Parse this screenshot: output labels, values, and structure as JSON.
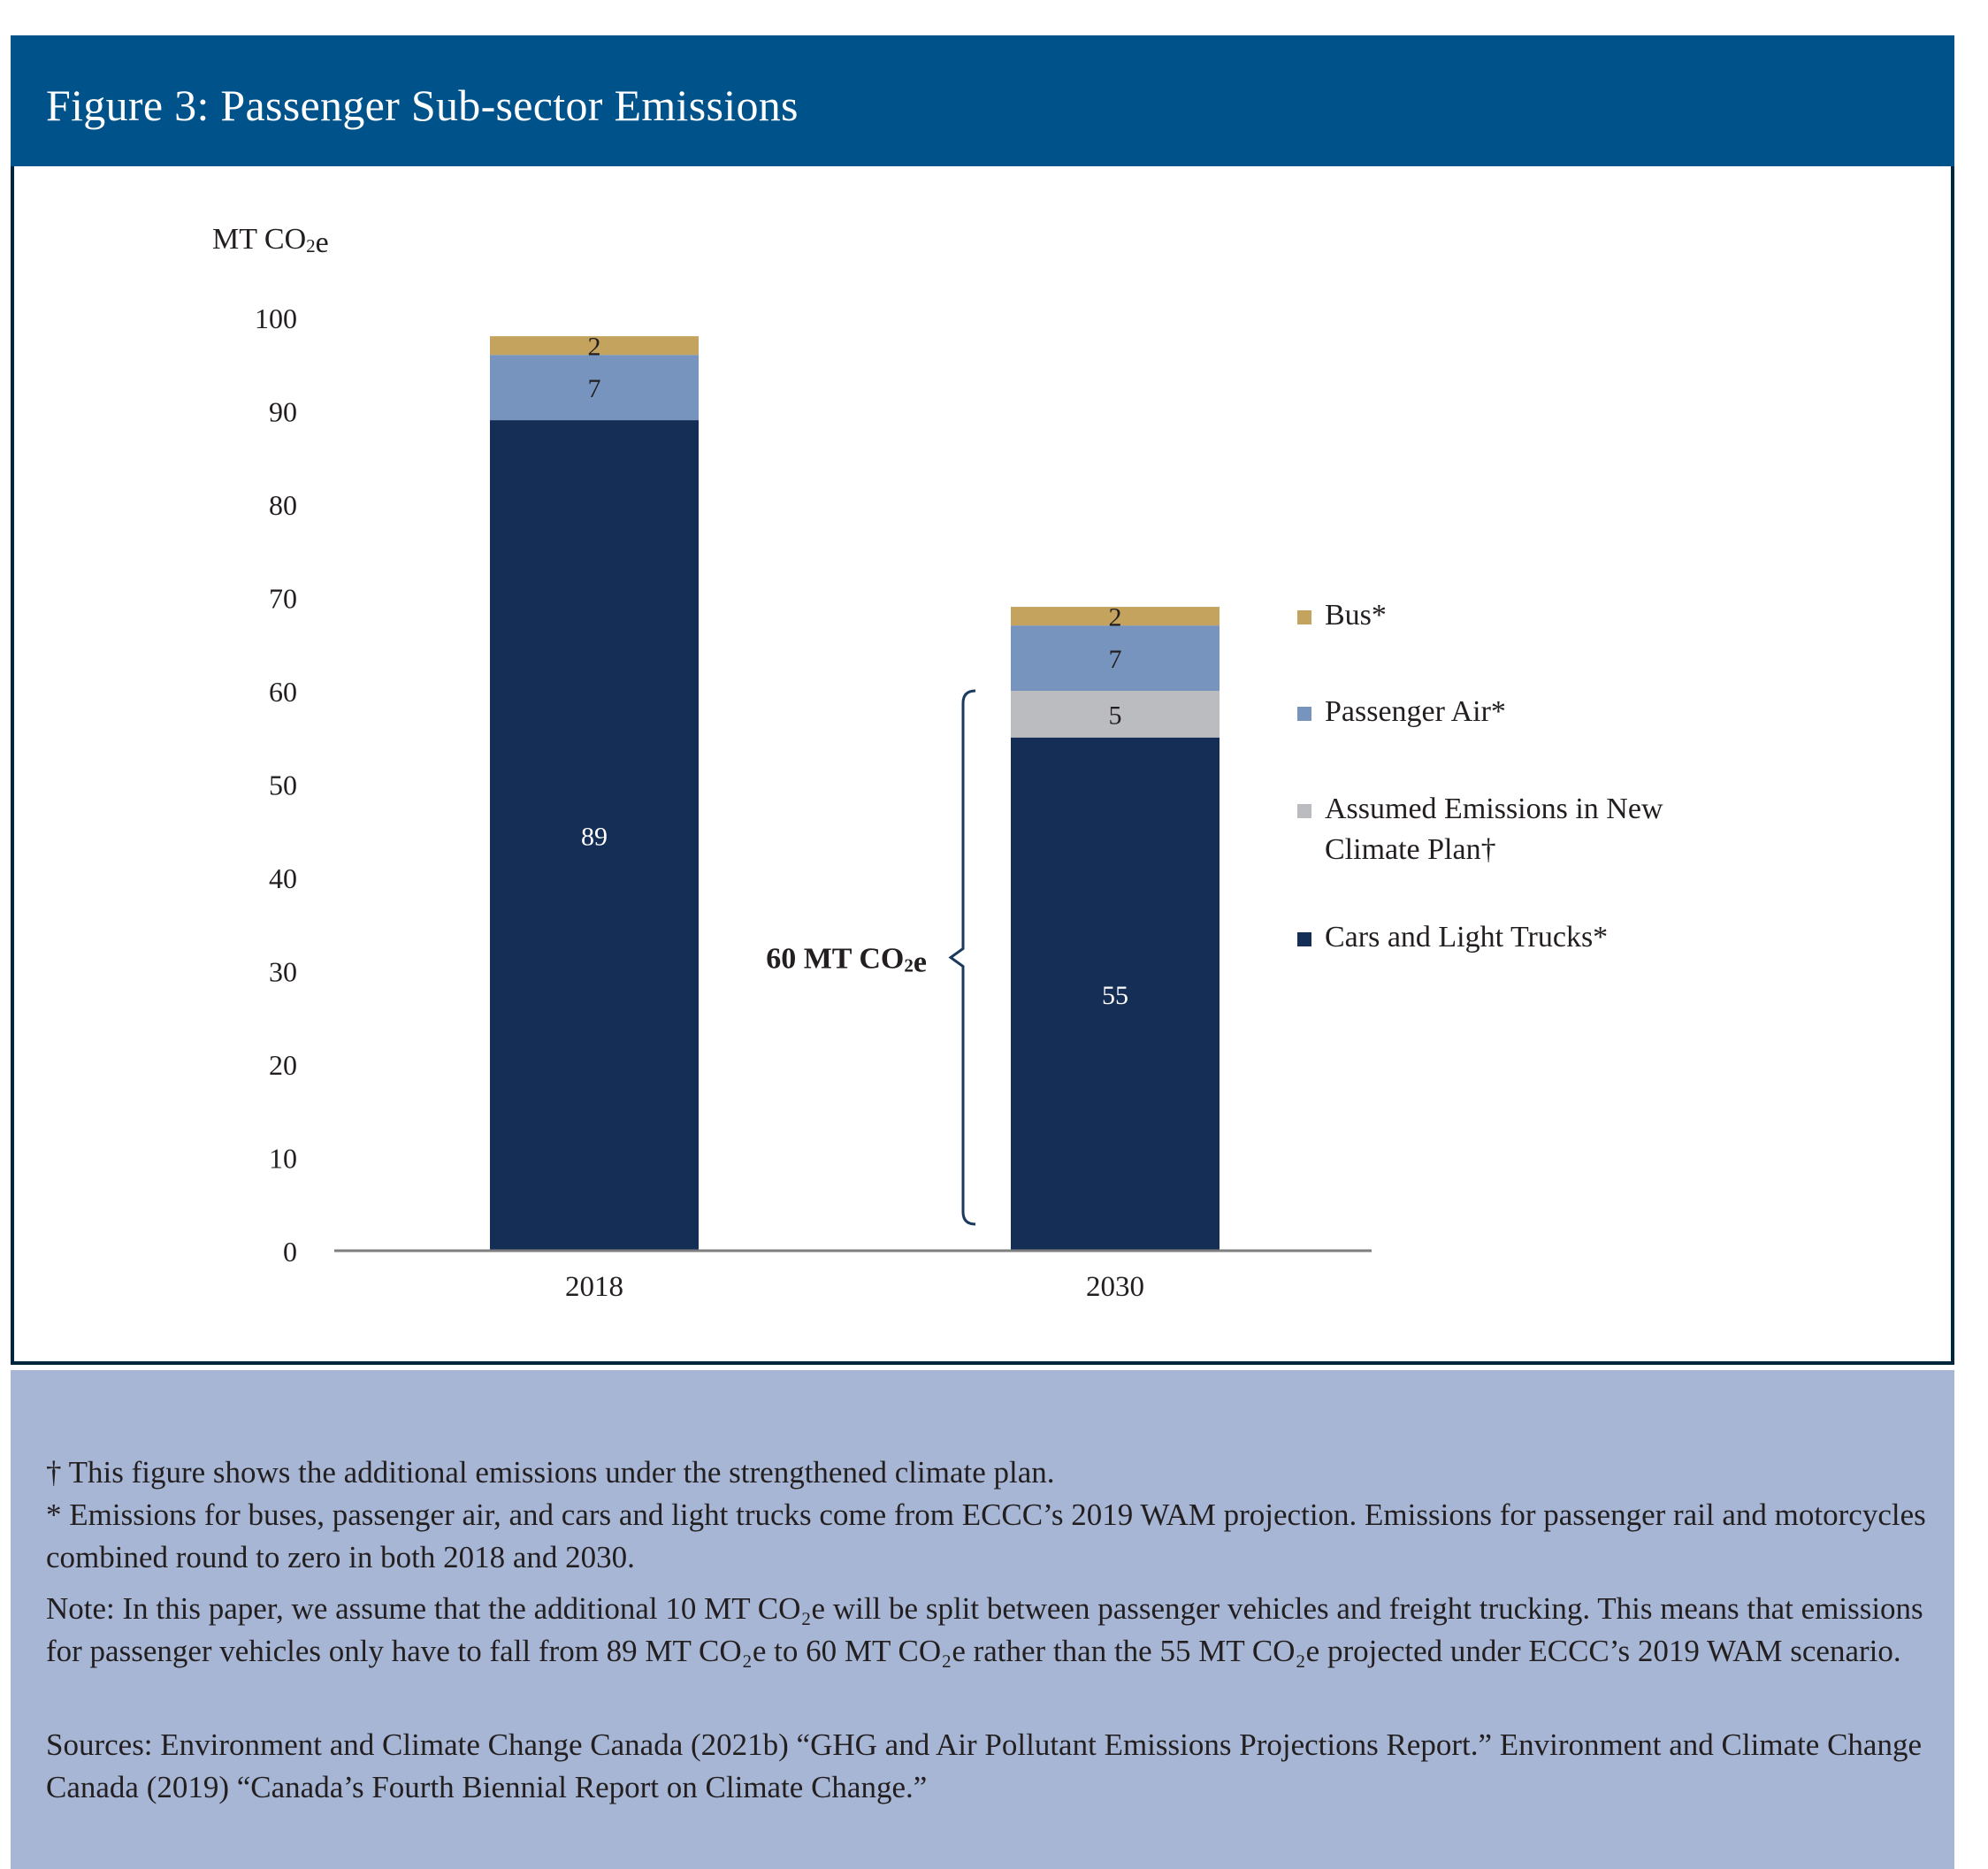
{
  "header": {
    "title": "Figure 3: Passenger Sub-sector Emissions"
  },
  "colors": {
    "header_bg": "#00528a",
    "notes_bg": "#a7b6d4",
    "bus": "#c4a35f",
    "passenger_air": "#7694bd",
    "assumed": "#bbbcc0",
    "cars": "#142e55",
    "bracket": "#1a3a5e"
  },
  "chart_data": {
    "type": "bar",
    "stacked": true,
    "categories": [
      "2018",
      "2030"
    ],
    "series": [
      {
        "name": "Cars and Light Trucks*",
        "values": [
          89,
          55
        ],
        "color": "#142e55",
        "label_color": "#ffffff"
      },
      {
        "name": "Assumed Emissions in New Climate Plan†",
        "values": [
          0,
          5
        ],
        "color": "#bbbcc0",
        "label_color": "#231f20"
      },
      {
        "name": "Passenger Air*",
        "values": [
          7,
          7
        ],
        "color": "#7694bd",
        "label_color": "#231f20"
      },
      {
        "name": "Bus*",
        "values": [
          2,
          2
        ],
        "color": "#c4a35f",
        "label_color": "#231f20"
      }
    ],
    "legend_order": [
      "Bus*",
      "Passenger Air*",
      "Assumed Emissions in New Climate Plan†",
      "Cars and Light Trucks*"
    ],
    "ylabel": "MT CO₂e",
    "yticks": [
      0,
      10,
      20,
      30,
      40,
      50,
      60,
      70,
      80,
      90,
      100
    ],
    "ylim": [
      0,
      100
    ],
    "grid": false,
    "legend_position": "right",
    "annotation": {
      "text": "60 MT CO₂e",
      "category": "2030",
      "from": 0,
      "to": 60
    }
  },
  "notes": {
    "dagger": "† This figure shows the additional emissions under the strengthened climate plan.",
    "asterisk": "* Emissions for buses, passenger air, and cars and light trucks come from ECCC’s 2019 WAM projection. Emissions for passenger rail and motorcycles combined round to zero in both 2018 and 2030.",
    "note": "Note: In this paper, we assume that the additional 10 MT CO₂e will be split between passenger vehicles and freight trucking. This means that emissions for passenger vehicles only have to fall from 89 MT CO₂e to 60 MT CO₂e rather than the 55 MT CO₂e projected under ECCC’s 2019 WAM scenario.",
    "sources": "Sources: Environment and Climate Change Canada (2021b) “GHG and Air Pollutant Emissions Projections Report.” Environment and Climate Change Canada (2019) “Canada’s Fourth Biennial Report on Climate Change.”"
  }
}
